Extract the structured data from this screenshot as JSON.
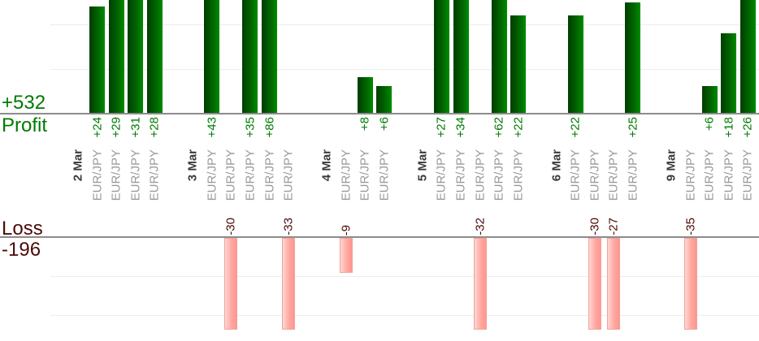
{
  "chart_data": {
    "type": "bar",
    "symbol": "EUR/JPY",
    "profit_panel": {
      "axis_title": "Profit",
      "total_label": "+532",
      "total": 532,
      "visible_value_range": [
        0,
        26
      ],
      "gridline_interval": 10
    },
    "loss_panel": {
      "axis_title": "Loss",
      "total_label": "-196",
      "total": -196,
      "visible_value_range": [
        -24,
        0
      ],
      "gridline_interval": 10
    },
    "groups": [
      {
        "date": "2 Mar",
        "trades": [
          {
            "symbol": "EUR/JPY",
            "value": 24,
            "label": "+24"
          },
          {
            "symbol": "EUR/JPY",
            "value": 29,
            "label": "+29"
          },
          {
            "symbol": "EUR/JPY",
            "value": 31,
            "label": "+31"
          },
          {
            "symbol": "EUR/JPY",
            "value": 28,
            "label": "+28"
          }
        ]
      },
      {
        "date": "3 Mar",
        "trades": [
          {
            "symbol": "EUR/JPY",
            "value": 43,
            "label": "+43"
          },
          {
            "symbol": "EUR/JPY",
            "value": -30,
            "label": "-30"
          },
          {
            "symbol": "EUR/JPY",
            "value": 35,
            "label": "+35"
          },
          {
            "symbol": "EUR/JPY",
            "value": 86,
            "label": "+86"
          },
          {
            "symbol": "EUR/JPY",
            "value": -33,
            "label": "-33"
          }
        ]
      },
      {
        "date": "4 Mar",
        "trades": [
          {
            "symbol": "EUR/JPY",
            "value": -9,
            "label": "-9"
          },
          {
            "symbol": "EUR/JPY",
            "value": 8,
            "label": "+8"
          },
          {
            "symbol": "EUR/JPY",
            "value": 6,
            "label": "+6"
          }
        ]
      },
      {
        "date": "5 Mar",
        "trades": [
          {
            "symbol": "EUR/JPY",
            "value": 27,
            "label": "+27"
          },
          {
            "symbol": "EUR/JPY",
            "value": 34,
            "label": "+34"
          },
          {
            "symbol": "EUR/JPY",
            "value": -32,
            "label": "-32"
          },
          {
            "symbol": "EUR/JPY",
            "value": 62,
            "label": "+62"
          },
          {
            "symbol": "EUR/JPY",
            "value": 22,
            "label": "+22"
          }
        ]
      },
      {
        "date": "6 Mar",
        "trades": [
          {
            "symbol": "EUR/JPY",
            "value": 22,
            "label": "+22"
          },
          {
            "symbol": "EUR/JPY",
            "value": -30,
            "label": "-30"
          },
          {
            "symbol": "EUR/JPY",
            "value": -27,
            "label": "-27"
          },
          {
            "symbol": "EUR/JPY",
            "value": 25,
            "label": "+25"
          }
        ]
      },
      {
        "date": "9 Mar",
        "trades": [
          {
            "symbol": "EUR/JPY",
            "value": -35,
            "label": "-35"
          },
          {
            "symbol": "EUR/JPY",
            "value": 6,
            "label": "+6"
          },
          {
            "symbol": "EUR/JPY",
            "value": 18,
            "label": "+18"
          },
          {
            "symbol": "EUR/JPY",
            "value": 26,
            "label": "+26"
          }
        ]
      }
    ],
    "colors": {
      "profit_bar": "#006400",
      "loss_bar": "#ffa8a1",
      "profit_text": "#007a00",
      "loss_text": "#4d0a0a",
      "date_text": "#3a3a3a",
      "symbol_text": "#999999",
      "axis_line": "#8c8c8c",
      "gridline": "#ececec"
    }
  }
}
